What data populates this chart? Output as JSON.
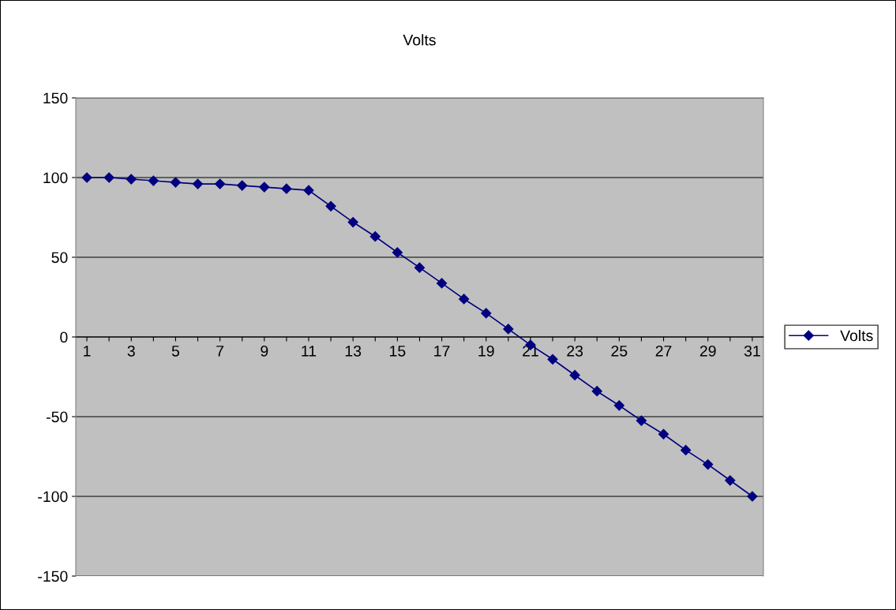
{
  "chart_data": {
    "type": "line",
    "title": "Volts",
    "categories": [
      "1",
      null,
      "3",
      null,
      "5",
      null,
      "7",
      null,
      "9",
      null,
      "11",
      null,
      "13",
      null,
      "15",
      null,
      "17",
      null,
      "19",
      null,
      "21",
      null,
      "23",
      null,
      "25",
      null,
      "27",
      null,
      "29",
      null,
      "31"
    ],
    "series": [
      {
        "name": "Volts",
        "color": "#000080",
        "values": [
          100,
          100,
          99,
          98,
          97,
          96,
          96,
          95,
          94,
          93,
          92,
          82,
          72,
          63,
          53,
          43.5,
          33.7,
          23.8,
          14.9,
          5,
          -5,
          -14,
          -24,
          -34,
          -43,
          -52.5,
          -61,
          -71,
          -80,
          -90,
          -100
        ]
      }
    ],
    "ylim": [
      -150,
      150
    ],
    "yticks": [
      -150,
      -100,
      -50,
      0,
      50,
      100,
      150
    ],
    "grid": "y",
    "legend": "right",
    "marker": "diamond",
    "line_style": "solid"
  }
}
